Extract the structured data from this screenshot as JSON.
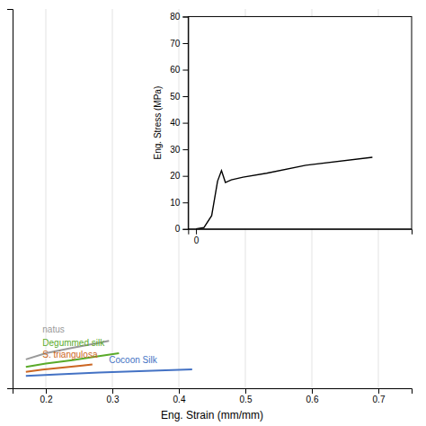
{
  "chart_data": [
    {
      "type": "line",
      "xlabel": "Eng. Strain (mm/mm)",
      "xlim": [
        0.15,
        0.75
      ],
      "xticks": [
        0.2,
        0.3,
        0.4,
        0.5,
        0.6,
        0.7
      ],
      "ylim": [
        -2,
        90
      ],
      "yticks": [],
      "grid": true,
      "tick_labels": "x",
      "series": [
        {
          "color": "#999999",
          "x": [
            0.17,
            0.2,
            0.24,
            0.28,
            0.295
          ],
          "values": [
            5.0,
            6.5,
            7.8,
            9.0,
            9.5
          ]
        },
        {
          "color": "#5aaa2a",
          "x": [
            0.17,
            0.2,
            0.24,
            0.28,
            0.31
          ],
          "values": [
            3.2,
            4.0,
            4.8,
            5.8,
            6.5
          ]
        },
        {
          "color": "#cc6622",
          "x": [
            0.17,
            0.195,
            0.225,
            0.255,
            0.27
          ],
          "values": [
            2.0,
            2.5,
            3.0,
            3.5,
            3.8
          ]
        },
        {
          "color": "#4472c4",
          "x": [
            0.17,
            0.22,
            0.28,
            0.35,
            0.42
          ],
          "values": [
            1.0,
            1.4,
            1.8,
            2.2,
            2.6
          ]
        }
      ],
      "annotations": [
        {
          "text": "natus",
          "x": 0.195,
          "y": 11.5,
          "color": "#999999"
        },
        {
          "text": "Degummed silk",
          "x": 0.195,
          "y": 8.2,
          "color": "#5aaa2a"
        },
        {
          "text": "S. triangulosa",
          "x": 0.195,
          "y": 5.5,
          "color": "#cc6622"
        },
        {
          "text": "Cocoon Silk",
          "x": 0.295,
          "y": 4.0,
          "color": "#4472c4"
        }
      ]
    },
    {
      "type": "line",
      "ylabel": "Eng. Stress (MPa)",
      "xlim": [
        -0.02,
        0.55
      ],
      "xticks": [
        0
      ],
      "ylim": [
        0,
        80
      ],
      "yticks": [
        0,
        10,
        20,
        30,
        40,
        50,
        60,
        70,
        80
      ],
      "grid": false,
      "series": [
        {
          "color": "#000000",
          "x": [
            0.0,
            0.02,
            0.04,
            0.055,
            0.065,
            0.075,
            0.09,
            0.12,
            0.18,
            0.28,
            0.45
          ],
          "values": [
            0.0,
            0.5,
            5.0,
            18.0,
            22.0,
            17.5,
            18.5,
            19.5,
            21.0,
            24.0,
            27.0
          ]
        }
      ]
    }
  ]
}
